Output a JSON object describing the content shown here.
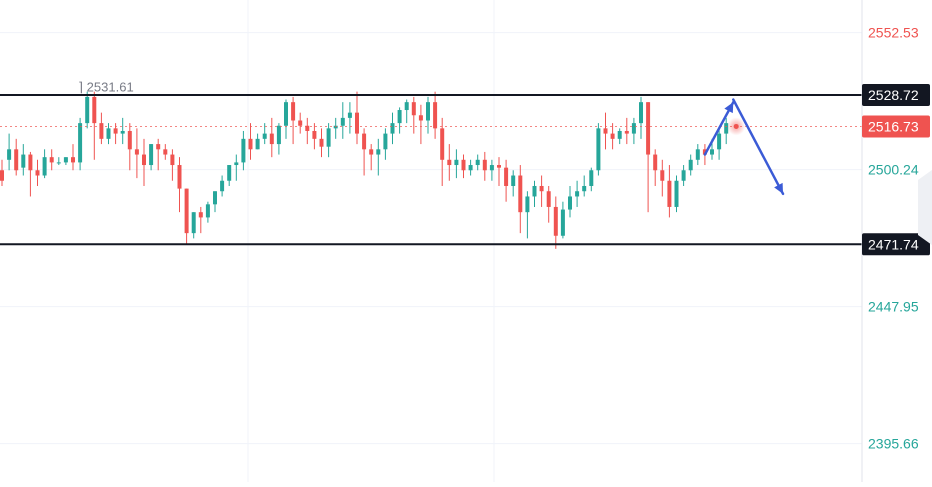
{
  "chart_data": {
    "type": "candlestick",
    "title": "",
    "xlabel": "",
    "ylabel": "",
    "ylim": [
      2381.0,
      2565.0
    ],
    "colors": {
      "up": "#26a69a",
      "down": "#ef5350",
      "level_line": "#131722",
      "arrow": "#3b5bd6",
      "grid": "#f0f3fa",
      "current_price_bg": "#ef5350"
    },
    "grid": true,
    "axis_ticks": [
      {
        "value": 2552.53,
        "label": "2552.53",
        "color": "#ef5350"
      },
      {
        "value": 2500.24,
        "label": "2500.24",
        "color": "#26a69a"
      },
      {
        "value": 2447.95,
        "label": "2447.95",
        "color": "#26a69a"
      },
      {
        "value": 2395.66,
        "label": "2395.66",
        "color": "#26a69a"
      }
    ],
    "levels": [
      {
        "name": "resistance",
        "value": 2528.72,
        "label": "2528.72"
      },
      {
        "name": "support",
        "value": 2471.74,
        "label": "2471.74"
      }
    ],
    "current_price": {
      "value": 2516.73,
      "label": "2516.73"
    },
    "high_marker": {
      "value": 2531.61,
      "label": "2531.61"
    },
    "projection_arrows": [
      {
        "from_index": 99,
        "from_value": 2506,
        "to_index": 103,
        "to_value": 2526
      },
      {
        "from_index": 103,
        "from_value": 2527,
        "to_index": 110,
        "to_value": 2491
      }
    ],
    "candles": [
      [
        2500,
        2504,
        2496,
        2494
      ],
      [
        2504,
        2514,
        2508,
        2500
      ],
      [
        2508,
        2512,
        2500,
        2498
      ],
      [
        2501,
        2510,
        2506,
        2498
      ],
      [
        2506,
        2507,
        2500,
        2490
      ],
      [
        2500,
        2504,
        2498,
        2494
      ],
      [
        2498,
        2508,
        2505,
        2497
      ],
      [
        2505,
        2508,
        2503,
        2500
      ],
      [
        2503,
        2505,
        2503,
        2502
      ],
      [
        2503,
        2503,
        2505,
        2502
      ],
      [
        2505,
        2510,
        2503,
        2500
      ],
      [
        2503,
        2520,
        2518,
        2500
      ],
      [
        2518,
        2530,
        2528,
        2516
      ],
      [
        2528,
        2530,
        2518,
        2504
      ],
      [
        2518,
        2522,
        2512,
        2510
      ],
      [
        2512,
        2518,
        2516,
        2510
      ],
      [
        2516,
        2518,
        2514,
        2510
      ],
      [
        2514,
        2520,
        2515,
        2510
      ],
      [
        2515,
        2518,
        2508,
        2500
      ],
      [
        2508,
        2516,
        2506,
        2497
      ],
      [
        2506,
        2512,
        2502,
        2494
      ],
      [
        2502,
        2508,
        2510,
        2500
      ],
      [
        2510,
        2512,
        2508,
        2500
      ],
      [
        2508,
        2510,
        2506,
        2504
      ],
      [
        2506,
        2508,
        2502,
        2496
      ],
      [
        2502,
        2505,
        2493,
        2484
      ],
      [
        2493,
        2479,
        2476,
        2472
      ],
      [
        2476,
        2480,
        2484,
        2474
      ],
      [
        2484,
        2486,
        2482,
        2476
      ],
      [
        2482,
        2488,
        2487,
        2480
      ],
      [
        2487,
        2490,
        2492,
        2484
      ],
      [
        2492,
        2498,
        2496,
        2490
      ],
      [
        2496,
        2500,
        2502,
        2494
      ],
      [
        2502,
        2506,
        2503,
        2496
      ],
      [
        2503,
        2515,
        2512,
        2500
      ],
      [
        2512,
        2518,
        2508,
        2504
      ],
      [
        2508,
        2514,
        2512,
        2508
      ],
      [
        2512,
        2518,
        2514,
        2510
      ],
      [
        2514,
        2520,
        2510,
        2505
      ],
      [
        2510,
        2518,
        2517,
        2506
      ],
      [
        2517,
        2527,
        2526,
        2512
      ],
      [
        2526,
        2528,
        2519,
        2510
      ],
      [
        2519,
        2522,
        2517,
        2514
      ],
      [
        2517,
        2520,
        2515,
        2510
      ],
      [
        2515,
        2518,
        2512,
        2508
      ],
      [
        2512,
        2516,
        2509,
        2505
      ],
      [
        2509,
        2518,
        2516,
        2505
      ],
      [
        2516,
        2520,
        2517,
        2512
      ],
      [
        2517,
        2526,
        2520,
        2512
      ],
      [
        2520,
        2526,
        2522,
        2514
      ],
      [
        2522,
        2530,
        2514,
        2510
      ],
      [
        2514,
        2516,
        2508,
        2498
      ],
      [
        2508,
        2510,
        2506,
        2500
      ],
      [
        2506,
        2512,
        2508,
        2498
      ],
      [
        2508,
        2516,
        2514,
        2504
      ],
      [
        2514,
        2522,
        2518,
        2510
      ],
      [
        2518,
        2524,
        2523,
        2514
      ],
      [
        2523,
        2527,
        2526,
        2518
      ],
      [
        2526,
        2528,
        2521,
        2514
      ],
      [
        2521,
        2525,
        2519,
        2510
      ],
      [
        2519,
        2528,
        2526,
        2514
      ],
      [
        2526,
        2530,
        2516,
        2512
      ],
      [
        2516,
        2520,
        2504,
        2494
      ],
      [
        2504,
        2510,
        2502,
        2496
      ],
      [
        2502,
        2508,
        2504,
        2497
      ],
      [
        2504,
        2506,
        2500,
        2497
      ],
      [
        2500,
        2504,
        2502,
        2498
      ],
      [
        2502,
        2506,
        2504,
        2500
      ],
      [
        2504,
        2507,
        2500,
        2496
      ],
      [
        2500,
        2504,
        2502,
        2496
      ],
      [
        2502,
        2505,
        2501,
        2494
      ],
      [
        2501,
        2504,
        2494,
        2488
      ],
      [
        2494,
        2500,
        2498,
        2490
      ],
      [
        2498,
        2502,
        2484,
        2476
      ],
      [
        2484,
        2492,
        2490,
        2474
      ],
      [
        2490,
        2496,
        2494,
        2486
      ],
      [
        2494,
        2498,
        2492,
        2486
      ],
      [
        2492,
        2494,
        2486,
        2480
      ],
      [
        2486,
        2490,
        2475,
        2470
      ],
      [
        2475,
        2488,
        2485,
        2474
      ],
      [
        2485,
        2494,
        2490,
        2482
      ],
      [
        2490,
        2496,
        2492,
        2486
      ],
      [
        2492,
        2498,
        2494,
        2490
      ],
      [
        2494,
        2501,
        2500,
        2492
      ],
      [
        2500,
        2518,
        2516,
        2498
      ],
      [
        2516,
        2522,
        2514,
        2508
      ],
      [
        2514,
        2518,
        2512,
        2508
      ],
      [
        2512,
        2516,
        2515,
        2510
      ],
      [
        2515,
        2520,
        2514,
        2510
      ],
      [
        2514,
        2520,
        2518,
        2510
      ],
      [
        2518,
        2528,
        2526,
        2512
      ],
      [
        2526,
        2526,
        2506,
        2484
      ],
      [
        2506,
        2508,
        2500,
        2494
      ],
      [
        2500,
        2504,
        2496,
        2490
      ],
      [
        2496,
        2502,
        2486,
        2482
      ],
      [
        2486,
        2498,
        2496,
        2484
      ],
      [
        2496,
        2502,
        2500,
        2494
      ],
      [
        2500,
        2506,
        2504,
        2498
      ],
      [
        2504,
        2510,
        2508,
        2502
      ],
      [
        2508,
        2510,
        2506,
        2502
      ],
      [
        2506,
        2512,
        2508,
        2504
      ],
      [
        2508,
        2516,
        2514,
        2504
      ],
      [
        2514,
        2520,
        2518,
        2510
      ]
    ]
  }
}
